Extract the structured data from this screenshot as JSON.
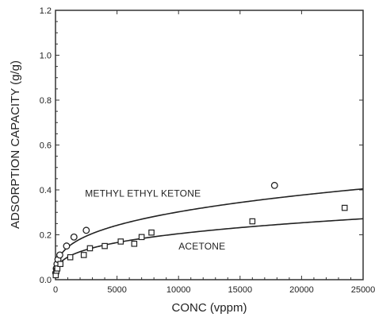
{
  "chart_data": {
    "type": "scatter",
    "title": "",
    "xlabel": "CONC (vppm)",
    "ylabel": "ADSORPTION CAPACITY (g/g)",
    "xlim": [
      0,
      25000
    ],
    "ylim": [
      0,
      1.2
    ],
    "x_ticks": [
      0,
      5000,
      10000,
      15000,
      20000,
      25000
    ],
    "x_tick_labels": [
      "0",
      "5000",
      "10000",
      "15000",
      "20000",
      "25000"
    ],
    "y_ticks": [
      0,
      0.2,
      0.4,
      0.6,
      0.8,
      1.0,
      1.2
    ],
    "y_tick_labels": [
      "0.0",
      "0.2",
      "0.4",
      "0.6",
      "0.8",
      "1.0",
      "1.2"
    ],
    "grid": false,
    "annotations": [
      {
        "text": "METHYL ETHYL KETONE",
        "x": 2400,
        "y": 0.37
      },
      {
        "text": "ACETONE",
        "x": 10000,
        "y": 0.135
      }
    ],
    "series": [
      {
        "name": "METHYL ETHYL KETONE",
        "marker": "circle",
        "points": [
          [
            20,
            0.03
          ],
          [
            60,
            0.05
          ],
          [
            120,
            0.07
          ],
          [
            200,
            0.09
          ],
          [
            350,
            0.11
          ],
          [
            900,
            0.15
          ],
          [
            1500,
            0.19
          ],
          [
            2500,
            0.22
          ],
          [
            17800,
            0.42
          ]
        ],
        "fit": {
          "a": 0.016,
          "b": 0.319
        }
      },
      {
        "name": "ACETONE",
        "marker": "square",
        "points": [
          [
            20,
            0.02
          ],
          [
            80,
            0.04
          ],
          [
            150,
            0.05
          ],
          [
            400,
            0.07
          ],
          [
            1200,
            0.1
          ],
          [
            2300,
            0.11
          ],
          [
            2800,
            0.14
          ],
          [
            4000,
            0.15
          ],
          [
            5300,
            0.17
          ],
          [
            6400,
            0.16
          ],
          [
            7000,
            0.19
          ],
          [
            7800,
            0.21
          ],
          [
            16000,
            0.26
          ],
          [
            23500,
            0.32
          ]
        ],
        "fit": {
          "a": 0.012,
          "b": 0.308
        }
      }
    ]
  },
  "colors": {
    "axis": "#333333",
    "ink": "#222222",
    "background": "#ffffff"
  }
}
